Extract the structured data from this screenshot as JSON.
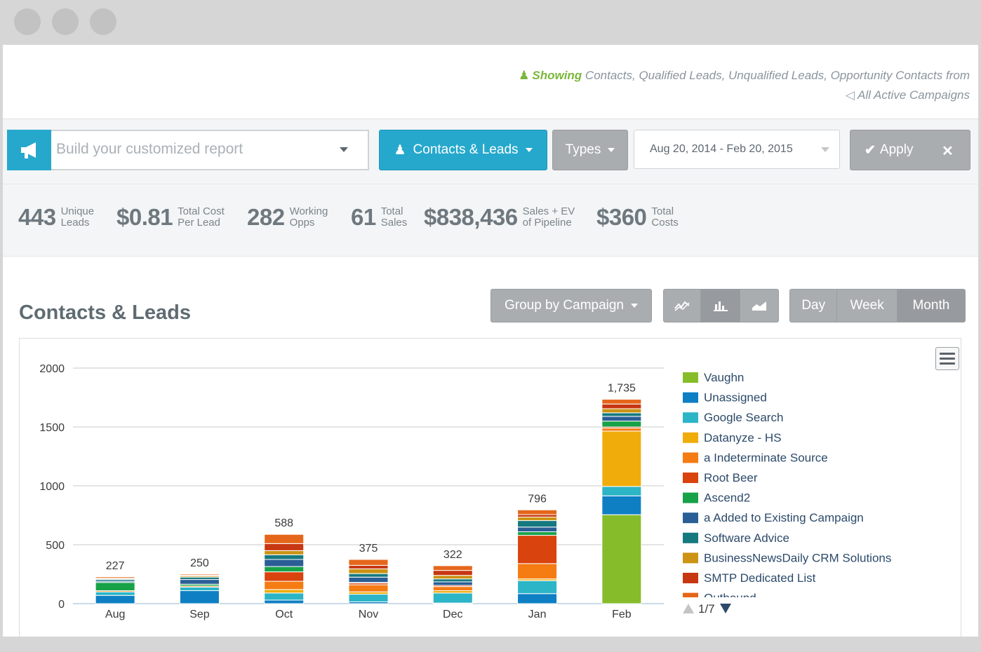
{
  "info": {
    "showing_label": "Showing",
    "showing_text": " Contacts, Qualified Leads, Unqualified Leads, Opportunity Contacts from",
    "campaigns_text": "All Active Campaigns"
  },
  "toolbar": {
    "report_placeholder": "Build your customized report",
    "contacts_leads_label": "Contacts & Leads",
    "types_label": "Types",
    "date_range": "Aug 20, 2014 - Feb 20, 2015",
    "apply_label": "Apply",
    "close_label": "✕"
  },
  "stats": [
    {
      "value": "443",
      "label_line1": "Unique",
      "label_line2": "Leads"
    },
    {
      "value": "$0.81",
      "label_line1": "Total Cost",
      "label_line2": "Per Lead"
    },
    {
      "value": "282",
      "label_line1": "Working",
      "label_line2": "Opps"
    },
    {
      "value": "61",
      "label_line1": "Total",
      "label_line2": "Sales"
    },
    {
      "value": "$838,436",
      "label_line1": "Sales + EV",
      "label_line2": "of Pipeline"
    },
    {
      "value": "$360",
      "label_line1": "Total",
      "label_line2": "Costs"
    }
  ],
  "section_title": "Contacts & Leads",
  "controls": {
    "group_by_label": "Group by Campaign",
    "periods": [
      "Day",
      "Week",
      "Month"
    ],
    "active_period": "Month",
    "chart_type_icons": [
      "line-chart-icon",
      "bar-chart-icon",
      "area-chart-icon"
    ],
    "active_chart_type": "bar-chart-icon"
  },
  "legend_pager": "1/7",
  "chart_data": {
    "type": "bar",
    "stacked": true,
    "title": "Contacts & Leads",
    "categories": [
      "Aug",
      "Sep",
      "Oct",
      "Nov",
      "Dec",
      "Jan",
      "Feb"
    ],
    "totals": [
      227,
      250,
      588,
      375,
      322,
      796,
      1735
    ],
    "total_labels": [
      "227",
      "250",
      "588",
      "375",
      "322",
      "796",
      "1,735"
    ],
    "yticks": [
      0,
      500,
      1000,
      1500,
      2000
    ],
    "ylim": [
      0,
      2000
    ],
    "grid": true,
    "legend_position": "right",
    "series": [
      {
        "name": "Vaughn",
        "color": "#86bc2a",
        "values": [
          0,
          0,
          0,
          0,
          0,
          0,
          755
        ]
      },
      {
        "name": "Unassigned",
        "color": "#0e7fc3",
        "values": [
          70,
          110,
          30,
          15,
          5,
          85,
          160
        ]
      },
      {
        "name": "Google Search",
        "color": "#2cb5c7",
        "values": [
          30,
          30,
          60,
          65,
          85,
          110,
          80
        ]
      },
      {
        "name": "Datanyze - HS",
        "color": "#f0ac0a",
        "values": [
          0,
          0,
          30,
          20,
          20,
          15,
          470
        ]
      },
      {
        "name": "a Indeterminate Source",
        "color": "#f57b13",
        "values": [
          10,
          10,
          70,
          60,
          35,
          130,
          25
        ]
      },
      {
        "name": "Root Beer",
        "color": "#d9430d",
        "values": [
          0,
          0,
          80,
          15,
          10,
          240,
          10
        ]
      },
      {
        "name": "Ascend2",
        "color": "#17a248",
        "values": [
          70,
          15,
          45,
          5,
          0,
          30,
          50
        ]
      },
      {
        "name": "a Added to Existing Campaign",
        "color": "#2a5e96",
        "values": [
          10,
          40,
          60,
          45,
          30,
          40,
          40
        ]
      },
      {
        "name": "Software Advice",
        "color": "#157a80",
        "values": [
          15,
          20,
          40,
          30,
          25,
          55,
          30
        ]
      },
      {
        "name": "BusinessNewsDaily CRM Solutions",
        "color": "#cc9314",
        "values": [
          5,
          10,
          35,
          40,
          30,
          30,
          35
        ]
      },
      {
        "name": "SMTP Dedicated List",
        "color": "#c73712",
        "values": [
          5,
          5,
          60,
          30,
          42,
          21,
          40
        ]
      },
      {
        "name": "Outbound",
        "color": "#e5661a",
        "values": [
          12,
          10,
          78,
          50,
          40,
          40,
          40
        ]
      }
    ]
  }
}
